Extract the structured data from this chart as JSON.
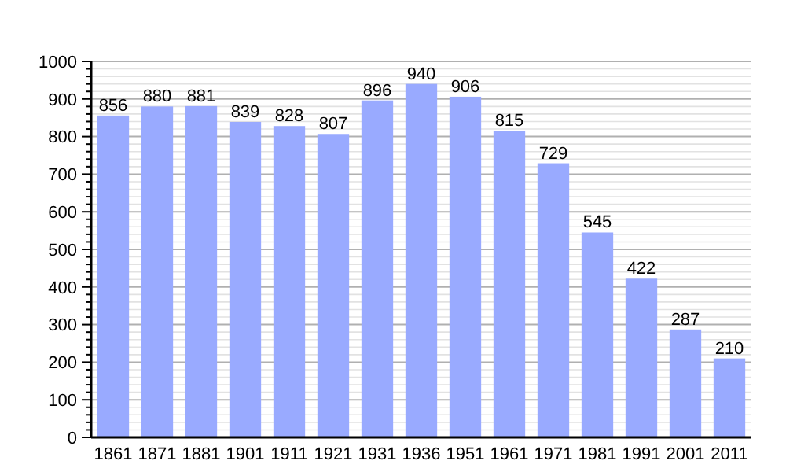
{
  "chart_data": {
    "type": "bar",
    "categories": [
      "1861",
      "1871",
      "1881",
      "1901",
      "1911",
      "1921",
      "1931",
      "1936",
      "1951",
      "1961",
      "1971",
      "1981",
      "1991",
      "2001",
      "2011"
    ],
    "values": [
      856,
      880,
      881,
      839,
      828,
      807,
      896,
      940,
      906,
      815,
      729,
      545,
      422,
      287,
      210
    ],
    "color": "#99aaff",
    "ylim": [
      0,
      1000
    ],
    "yticks": [
      0,
      100,
      200,
      300,
      400,
      500,
      600,
      700,
      800,
      900,
      1000
    ],
    "grid": true,
    "data_labels": true
  }
}
